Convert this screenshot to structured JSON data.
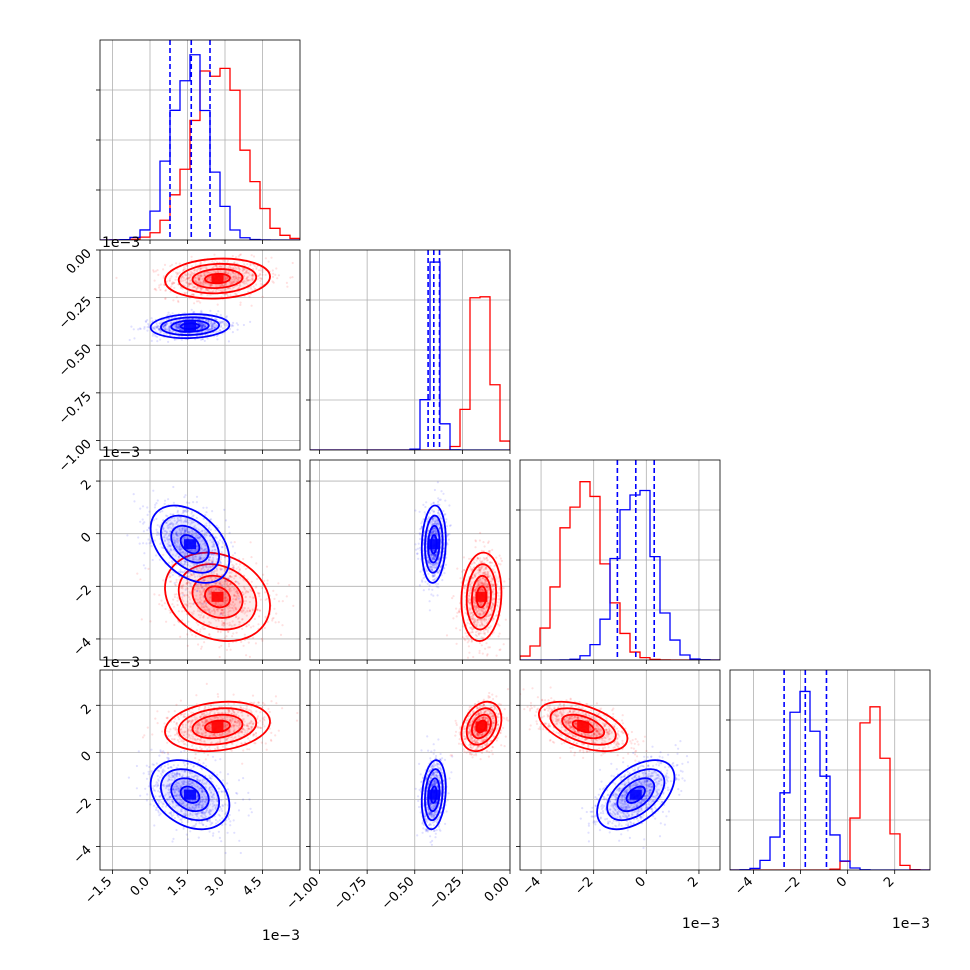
{
  "chart_data": {
    "type": "corner",
    "grid": true,
    "colors": {
      "series_a": "#ff0000",
      "series_b": "#0000ff"
    },
    "parameters": [
      {
        "range": [
          -0.002,
          0.006
        ],
        "ticks": [
          -0.0015,
          0.0,
          0.0015,
          0.003,
          0.0045
        ],
        "tick_labels": [
          "−1.5",
          "0.0",
          "1.5",
          "3.0",
          "4.5"
        ],
        "offset_label": "1e−3"
      },
      {
        "range": [
          -0.00105,
          0.0
        ],
        "ticks": [
          -0.001,
          -0.00075,
          -0.0005,
          -0.00025,
          0.0
        ],
        "tick_labels": [
          "−1.00",
          "−0.75",
          "−0.50",
          "−0.25",
          "0.00"
        ],
        "offset_label": "1e−3"
      },
      {
        "range": [
          -0.0048,
          0.0028
        ],
        "ticks": [
          -0.004,
          -0.002,
          0.0,
          0.002
        ],
        "tick_labels": [
          "−4",
          "−2",
          "0",
          "2"
        ],
        "offset_label": "1e−3"
      },
      {
        "range": [
          -0.005,
          0.0035
        ],
        "ticks": [
          -0.004,
          -0.002,
          0.0,
          0.002
        ],
        "tick_labels": [
          "−4",
          "−2",
          "0",
          "2"
        ],
        "offset_label": "1e−3"
      }
    ],
    "series": [
      {
        "color": "#ff0000",
        "mean": [
          0.0027,
          -0.00015,
          -0.0024,
          0.0011
        ],
        "std": [
          0.001,
          5e-05,
          0.0008,
          0.0005
        ],
        "corr": [
          [
            1,
            0.1,
            -0.2,
            0.2
          ],
          [
            0.1,
            1,
            0.1,
            0.3
          ],
          [
            -0.2,
            0.1,
            1,
            -0.5
          ],
          [
            0.2,
            0.3,
            -0.5,
            1
          ]
        ]
      },
      {
        "color": "#0000ff",
        "mean": [
          0.0016,
          -0.0004,
          -0.0004,
          -0.0018
        ],
        "std": [
          0.00075,
          3e-05,
          0.0007,
          0.0007
        ],
        "corr": [
          [
            1,
            0.1,
            -0.4,
            -0.3
          ],
          [
            0.1,
            1,
            0.1,
            0.2
          ],
          [
            -0.4,
            0.1,
            1,
            0.5
          ],
          [
            -0.3,
            0.2,
            0.5,
            1
          ]
        ],
        "quantiles": [
          [
            0.0008,
            0.00165,
            0.0024
          ],
          [
            -0.00043,
            -0.0004,
            -0.00037
          ],
          [
            -0.0011,
            -0.0004,
            0.0003
          ],
          [
            -0.0027,
            -0.0018,
            -0.0009
          ]
        ]
      }
    ],
    "panels": {
      "origin_x": [
        100,
        310,
        520,
        730
      ],
      "origin_y": [
        40,
        250,
        460,
        670
      ],
      "size": 200
    }
  }
}
